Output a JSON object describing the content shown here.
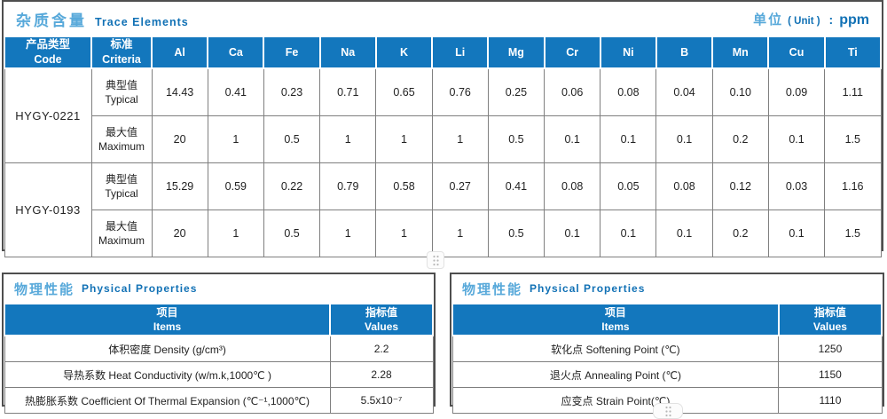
{
  "colors": {
    "header_blue": "#1377bd",
    "title_light_blue": "#58a9da",
    "title_dark_blue": "#1171b5",
    "table_border_dark": "#4e4e4e",
    "cell_border_gray": "#7f7f7f"
  },
  "trace_elements": {
    "title_zh": "杂质含量",
    "title_en": "Trace Elements",
    "unit_zh": "单位",
    "unit_en": "( Unit )",
    "unit_colon": ":",
    "unit_value": "ppm",
    "col1_zh": "产品类型",
    "col1_en": "Code",
    "col2_zh": "标准",
    "col2_en": "Criteria",
    "elements": [
      "Al",
      "Ca",
      "Fe",
      "Na",
      "K",
      "Li",
      "Mg",
      "Cr",
      "Ni",
      "B",
      "Mn",
      "Cu",
      "Ti"
    ],
    "products": [
      {
        "code": "HYGY-0221",
        "rows": [
          {
            "criteria_zh": "典型值",
            "criteria_en": "Typical",
            "values": [
              "14.43",
              "0.41",
              "0.23",
              "0.71",
              "0.65",
              "0.76",
              "0.25",
              "0.06",
              "0.08",
              "0.04",
              "0.10",
              "0.09",
              "1.11"
            ]
          },
          {
            "criteria_zh": "最大值",
            "criteria_en": "Maximum",
            "values": [
              "20",
              "1",
              "0.5",
              "1",
              "1",
              "1",
              "0.5",
              "0.1",
              "0.1",
              "0.1",
              "0.2",
              "0.1",
              "1.5"
            ]
          }
        ]
      },
      {
        "code": "HYGY-0193",
        "rows": [
          {
            "criteria_zh": "典型值",
            "criteria_en": "Typical",
            "values": [
              "15.29",
              "0.59",
              "0.22",
              "0.79",
              "0.58",
              "0.27",
              "0.41",
              "0.08",
              "0.05",
              "0.08",
              "0.12",
              "0.03",
              "1.16"
            ]
          },
          {
            "criteria_zh": "最大值",
            "criteria_en": "Maximum",
            "values": [
              "20",
              "1",
              "0.5",
              "1",
              "1",
              "1",
              "0.5",
              "0.1",
              "0.1",
              "0.1",
              "0.2",
              "0.1",
              "1.5"
            ]
          }
        ]
      }
    ]
  },
  "physical_left": {
    "title_zh": "物理性能",
    "title_en": "Physical Properties",
    "col_items_zh": "项目",
    "col_items_en": "Items",
    "col_values_zh": "指标值",
    "col_values_en": "Values",
    "rows": [
      {
        "item": "体积密度 Density (g/cm³)",
        "value": "2.2"
      },
      {
        "item": "导热系数 Heat Conductivity (w/m.k,1000℃ )",
        "value": "2.28"
      },
      {
        "item": "热膨胀系数 Coefficient Of Thermal Expansion (℃⁻¹,1000℃)",
        "value": "5.5x10⁻⁷"
      }
    ]
  },
  "physical_right": {
    "title_zh": "物理性能",
    "title_en": "Physical Properties",
    "col_items_zh": "项目",
    "col_items_en": "Items",
    "col_values_zh": "指标值",
    "col_values_en": "Values",
    "rows": [
      {
        "item": "软化点 Softening Point (℃)",
        "value": "1250"
      },
      {
        "item": "退火点 Annealing Point (℃)",
        "value": "1150"
      },
      {
        "item": "应变点 Strain Point(℃)",
        "value": "1110"
      }
    ]
  }
}
